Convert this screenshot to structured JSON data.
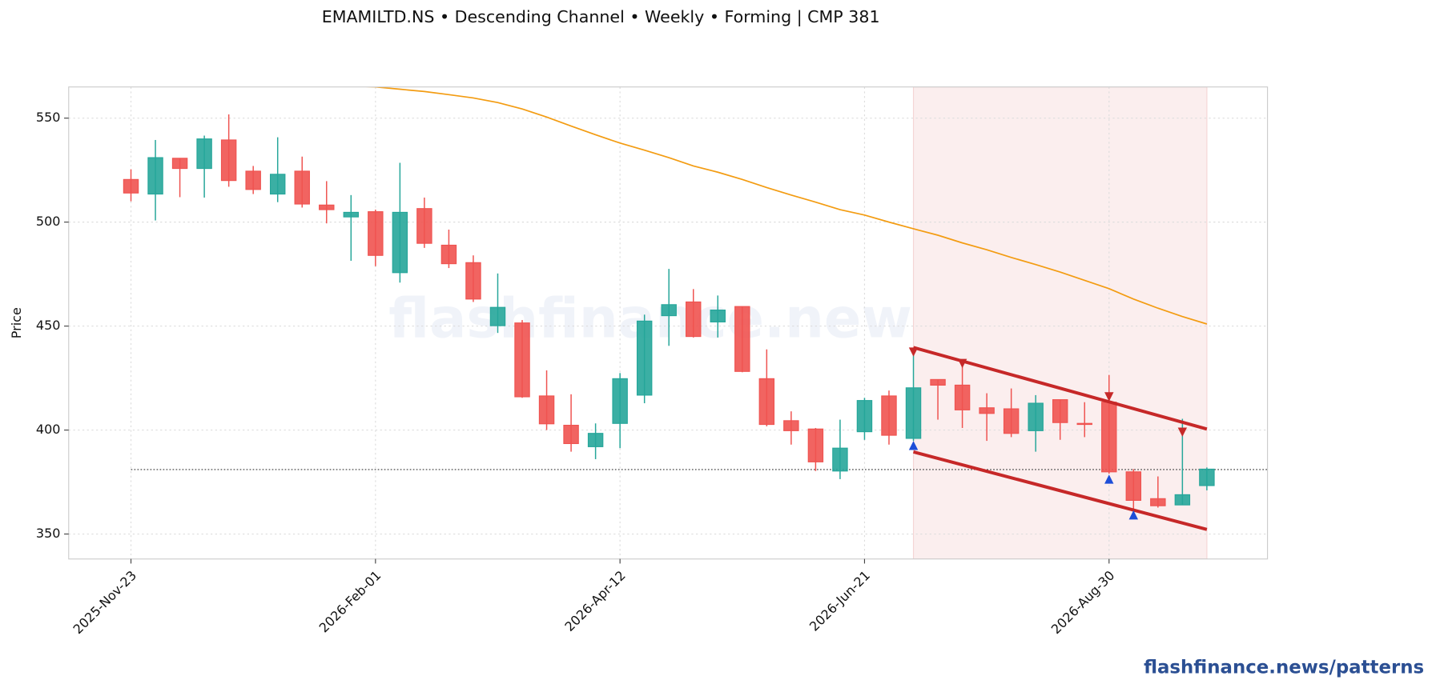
{
  "chart_data": {
    "type": "candlestick",
    "title": "EMAMILTD.NS  •  Descending Channel  •  Weekly  •  Forming  |  CMP 381",
    "ylabel": "Price",
    "categories": [
      "2025-Nov-23",
      null,
      null,
      null,
      null,
      null,
      null,
      null,
      null,
      null,
      "2026-Feb-01",
      null,
      null,
      null,
      null,
      null,
      null,
      null,
      null,
      null,
      "2026-Apr-12",
      null,
      null,
      null,
      null,
      null,
      null,
      null,
      null,
      null,
      "2026-Jun-21",
      null,
      null,
      null,
      null,
      null,
      null,
      null,
      null,
      null,
      "2026-Aug-30",
      null,
      null,
      null,
      null
    ],
    "open": [
      520.5,
      513.5,
      530.7,
      525.8,
      539.5,
      524.5,
      513.5,
      524.5,
      508.2,
      502.5,
      505,
      475.7,
      506.5,
      488.9,
      480.5,
      450.2,
      451.5,
      416.4,
      402.3,
      392,
      403.2,
      416.8,
      455,
      461.6,
      452,
      459.4,
      424.7,
      404.5,
      400.5,
      380.3,
      399.2,
      416.4,
      396,
      424.3,
      421.6,
      410.7,
      410.2,
      399.7,
      414.6,
      403.2,
      413.4,
      379.9,
      367,
      364,
      373.3
    ],
    "high": [
      525.4,
      539.5,
      530.7,
      541.6,
      551.8,
      527,
      540.8,
      531.5,
      519.7,
      513,
      506,
      528.5,
      511.8,
      496.4,
      484,
      475.3,
      452.9,
      428.7,
      417.2,
      403.2,
      427.4,
      455.5,
      477.5,
      467.8,
      464.7,
      459.4,
      438.8,
      409,
      401,
      405,
      415.5,
      419,
      437.5,
      424.3,
      433,
      417.7,
      420,
      416.8,
      414.6,
      413.4,
      426.5,
      381.2,
      377.7,
      405.4,
      382
    ],
    "low": [
      510,
      500.8,
      512,
      511.8,
      517,
      513.5,
      509.6,
      507,
      499.4,
      481.4,
      478.8,
      470.9,
      487.6,
      477.9,
      461.6,
      446.7,
      415.5,
      400,
      389.6,
      386,
      391.3,
      412.9,
      440.5,
      444.5,
      444.5,
      427.8,
      401.8,
      393,
      380.3,
      376.4,
      395.3,
      393,
      394.8,
      405,
      401,
      394.8,
      396.6,
      389.6,
      395.3,
      396.6,
      379,
      360.5,
      362.7,
      364,
      371
    ],
    "close": [
      514,
      531,
      525.8,
      540,
      520,
      515.7,
      523,
      508.7,
      506,
      504.7,
      484,
      504.7,
      489.8,
      480,
      463,
      459,
      416,
      403,
      393.5,
      398.4,
      424.7,
      452.4,
      460.3,
      445,
      457.7,
      428.2,
      402.7,
      399.7,
      384.7,
      391.3,
      414.2,
      397.5,
      420.3,
      421.6,
      409.7,
      408,
      398.4,
      412.9,
      403.6,
      402.7,
      379.9,
      366.2,
      363.6,
      368.9,
      381.2
    ],
    "up_color": "#26a69a",
    "down_color": "#ef5350",
    "ma": {
      "color": "#f39c12",
      "values": [
        null,
        null,
        null,
        null,
        null,
        null,
        null,
        null,
        null,
        565.5,
        565,
        563.9,
        562.8,
        561.3,
        559.7,
        557.5,
        554.4,
        550.5,
        546.2,
        542,
        538,
        534.6,
        531,
        527,
        524,
        520.5,
        516.6,
        513,
        509.6,
        506,
        503.4,
        500,
        496.8,
        493.7,
        490,
        486.7,
        483,
        479.6,
        476,
        472,
        468,
        463,
        458.6,
        454.6,
        451
      ]
    },
    "pattern_zone": {
      "x": [
        32,
        44
      ],
      "color": "#fbeeee"
    },
    "channel": {
      "color": "#c62828",
      "upper": {
        "x": [
          32,
          44
        ],
        "values": [
          439.7,
          400.5
        ]
      },
      "lower": {
        "x": [
          32,
          44
        ],
        "values": [
          389.5,
          352.2
        ]
      }
    },
    "pivot_highs": {
      "color": "#c62828",
      "x": [
        32,
        34,
        40,
        43
      ],
      "values": [
        437.5,
        432,
        416,
        399
      ]
    },
    "pivot_lows": {
      "color": "#1d4ed8",
      "x": [
        32,
        40,
        41
      ],
      "values": [
        392.6,
        376.4,
        359.2
      ]
    },
    "cmp_line": {
      "value": 381,
      "color": "#333333"
    },
    "ylim": [
      338,
      565
    ],
    "yticks": [
      350,
      400,
      450,
      500,
      550
    ],
    "grid": true
  },
  "watermark": "flashfinance.news",
  "footer": "flashfinance.news/patterns"
}
